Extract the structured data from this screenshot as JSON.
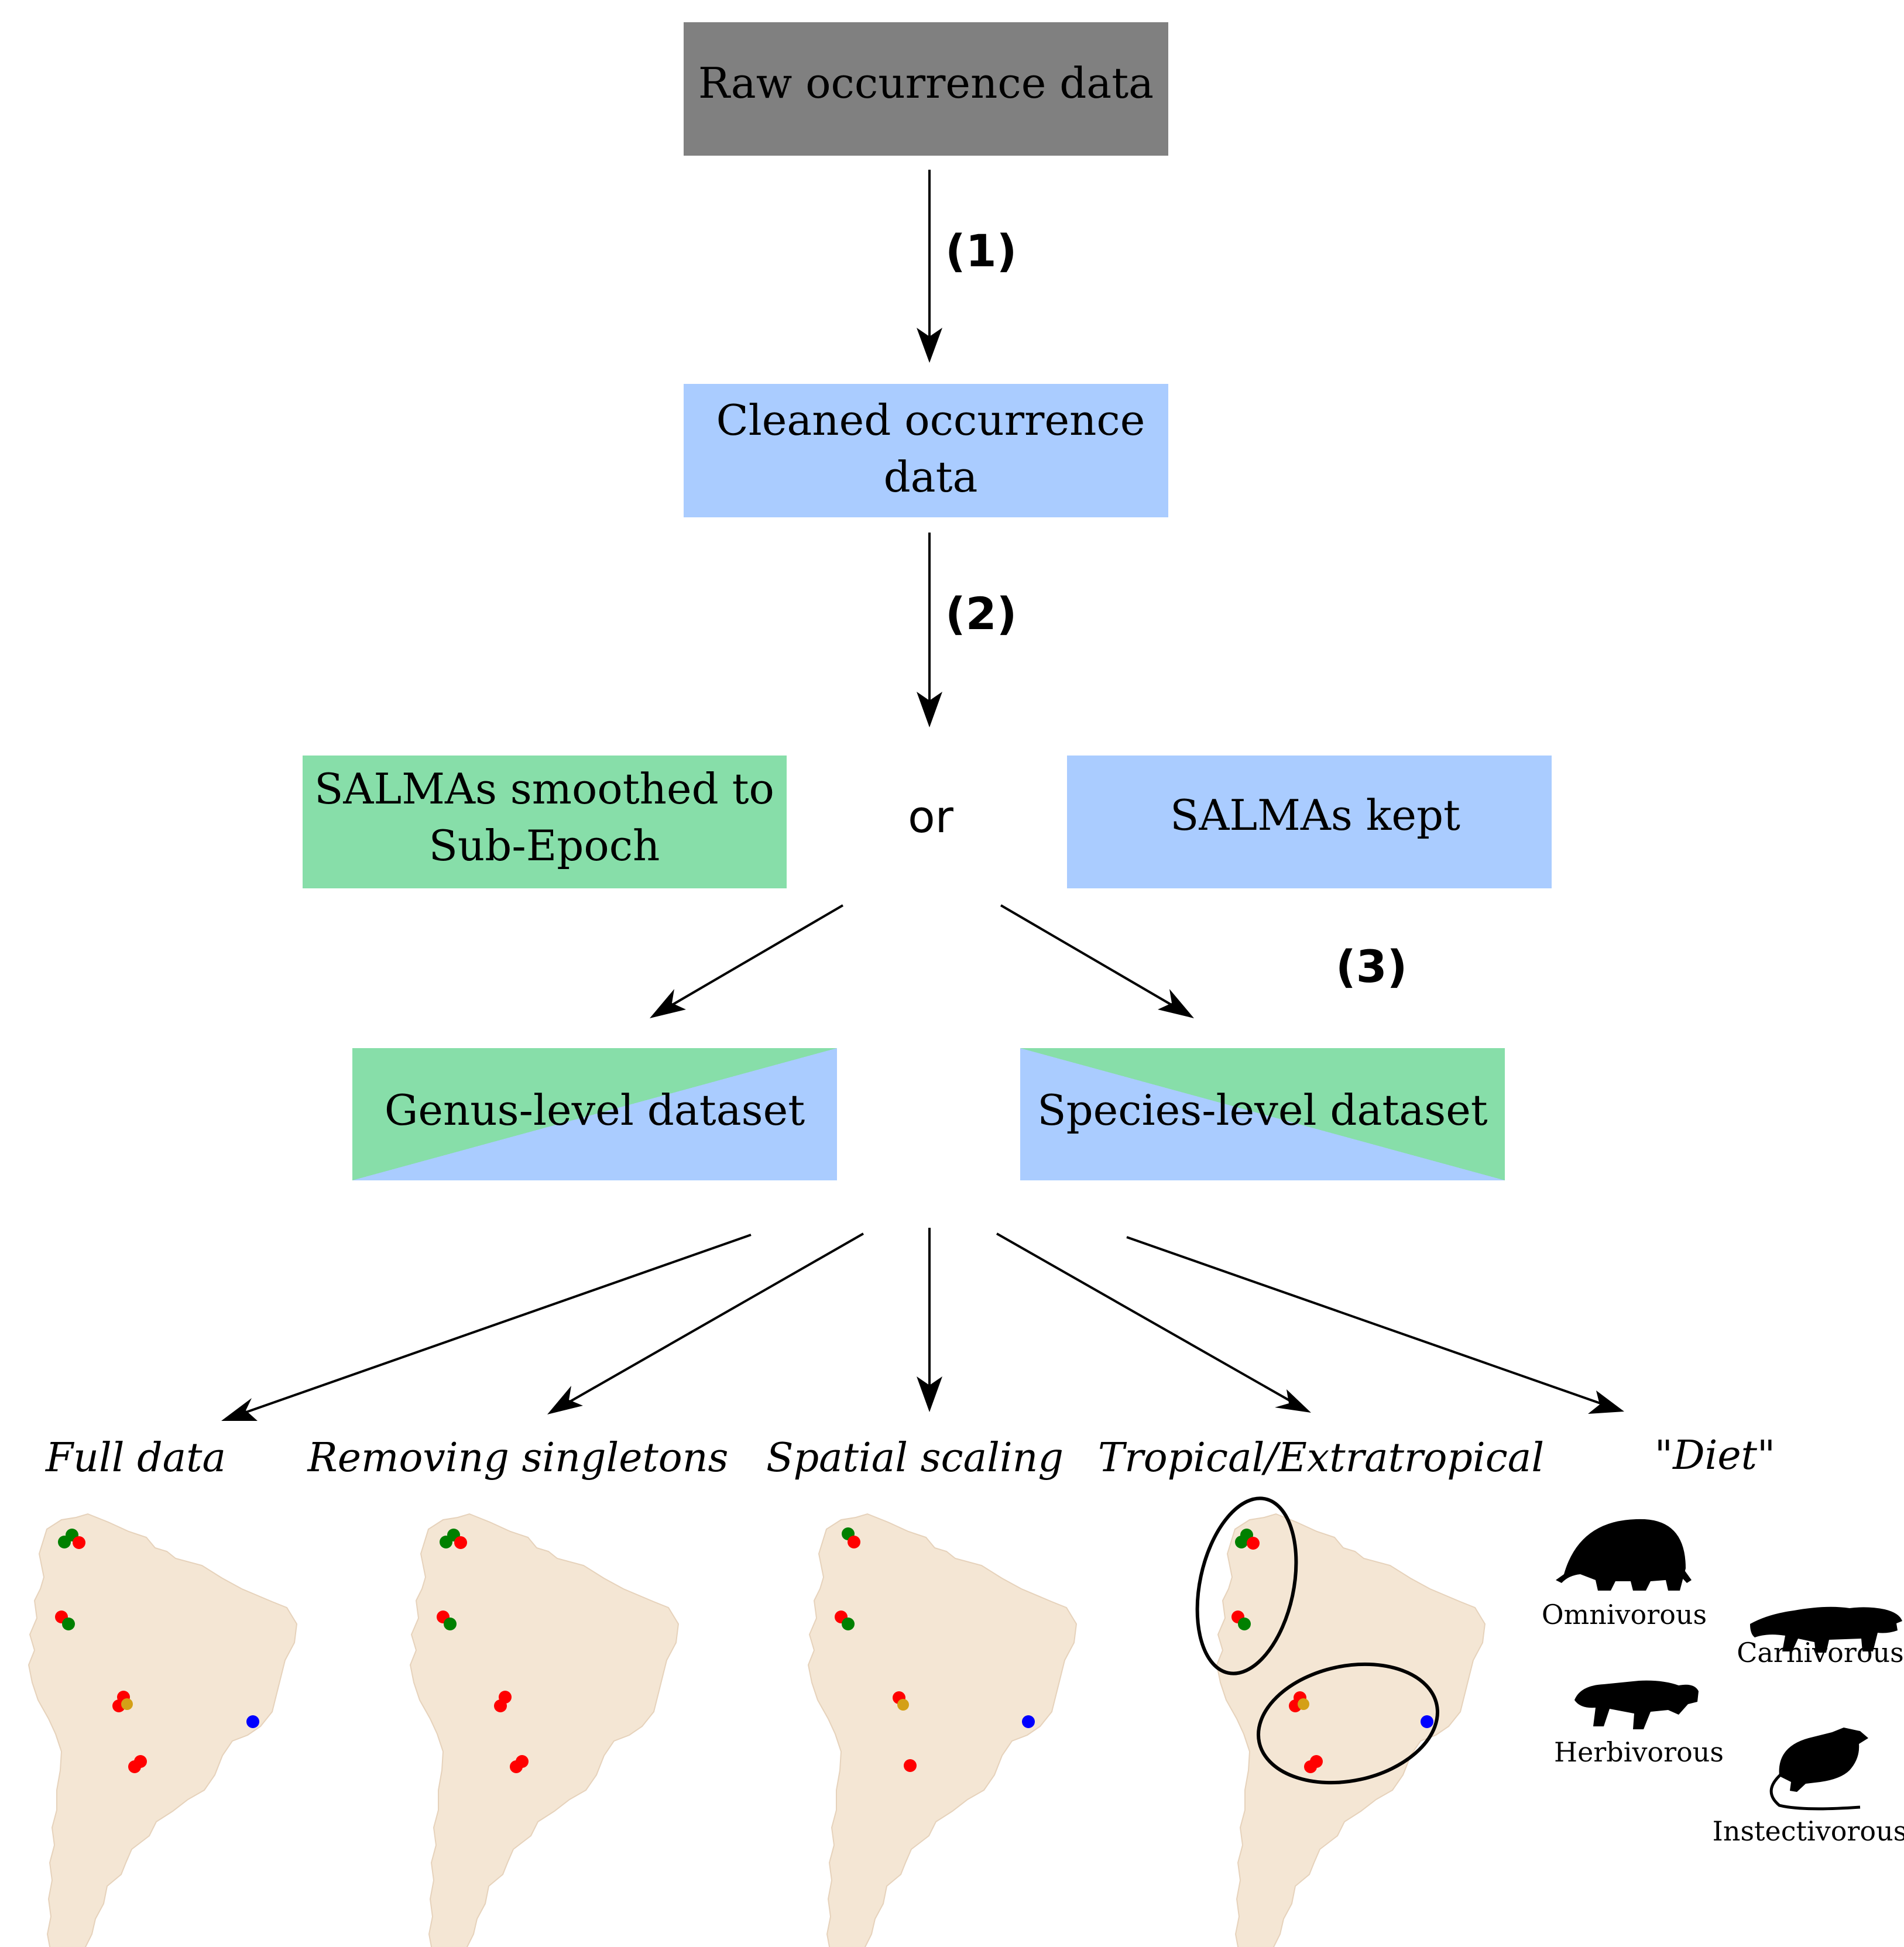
{
  "boxes": {
    "raw": {
      "label": "Raw occurrence data",
      "fill": "#808080"
    },
    "cleaned": {
      "line1": "Cleaned occurrence",
      "line2": "data",
      "fill": "#aaccff"
    },
    "salma_smoothed": {
      "line1": "SALMAs smoothed to",
      "line2": "Sub-Epoch",
      "fill": "#87dea9"
    },
    "or_label": "or",
    "salma_kept": {
      "label": "SALMAs kept",
      "fill": "#aaccff"
    },
    "genus": {
      "label": "Genus-level dataset"
    },
    "species": {
      "label": "Species-level dataset"
    }
  },
  "steps": {
    "step1": "(1)",
    "step2": "(2)",
    "step3": "(3)"
  },
  "analyses": [
    {
      "label": "Full data"
    },
    {
      "label": "Removing singletons"
    },
    {
      "label": "Spatial scaling"
    },
    {
      "label": "Tropical/Extratropical"
    },
    {
      "label": "\"Diet\""
    }
  ],
  "diet_categories": {
    "omnivorous": "Omnivorous",
    "carnivorous": "Carnivorous",
    "herbivorous": "Herbivorous",
    "insectivorous": "Instectivorous"
  },
  "colors": {
    "map_land": "#f4e6d4",
    "map_edge": "#e6d2bb",
    "dot_red": "#ff0000",
    "dot_green": "#008000",
    "dot_orange": "#d4a017",
    "dot_blue": "#0000ff",
    "arrow": "#000000"
  }
}
